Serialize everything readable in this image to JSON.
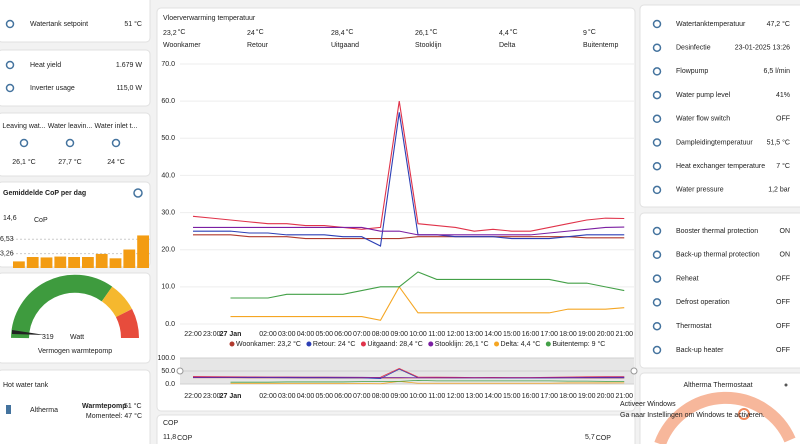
{
  "left": {
    "setpoint": {
      "label": "Watertank setpoint",
      "value": "51 °C"
    },
    "energy": [
      {
        "label": "Heat yield",
        "value": "1.679 W"
      },
      {
        "label": "Inverter usage",
        "value": "115,0 W"
      }
    ],
    "water": [
      {
        "label": "Leaving wat...",
        "value": "26,1 °C"
      },
      {
        "label": "Water leavin...",
        "value": "27,7 °C"
      },
      {
        "label": "Water inlet t...",
        "value": "24 °C"
      }
    ],
    "cop_day": {
      "title": "Gemiddelde CoP per dag",
      "value": "14,6",
      "unit": "CoP"
    },
    "power": {
      "value": "319",
      "unit": "Watt",
      "label": "Vermogen warmtepomp"
    },
    "hot_water": {
      "title": "Hot water tank",
      "name": "Altherma",
      "state_label": "Warmtepomp",
      "state": "51 °C",
      "current": "Momenteel: 47 °C"
    }
  },
  "chart_data": [
    {
      "type": "line",
      "title": "Vloerverwarming temperatuur",
      "stats": [
        {
          "value": "23,2",
          "unit": "°C",
          "name": "Woonkamer"
        },
        {
          "value": "24",
          "unit": "°C",
          "name": "Retour"
        },
        {
          "value": "28,4",
          "unit": "°C",
          "name": "Uitgaand"
        },
        {
          "value": "26,1",
          "unit": "°C",
          "name": "Stooklijn"
        },
        {
          "value": "4,4",
          "unit": "°C",
          "name": "Delta"
        },
        {
          "value": "9",
          "unit": "°C",
          "name": "Buitentemp"
        }
      ],
      "categories": [
        "22:00",
        "23:00",
        "27 Jan",
        null,
        "02:00",
        "03:00",
        "04:00",
        "05:00",
        "06:00",
        "07:00",
        "08:00",
        "09:00",
        "10:00",
        "11:00",
        "12:00",
        "13:00",
        "14:00",
        "15:00",
        "16:00",
        "17:00",
        "18:00",
        "19:00",
        "20:00",
        "21:00"
      ],
      "series": [
        {
          "name": "Woonkamer",
          "color": "#b03a2e",
          "values": [
            24,
            24,
            24,
            23.5,
            23.5,
            23.5,
            23,
            23,
            23,
            23,
            23,
            23,
            23.5,
            23.5,
            23.5,
            23.5,
            23.5,
            23.5,
            23.5,
            23.5,
            23.5,
            23.2,
            23.2,
            23.2
          ]
        },
        {
          "name": "Retour",
          "color": "#2c3fb5",
          "values": [
            25,
            25,
            25,
            24.5,
            24.5,
            24,
            24,
            24,
            23.5,
            23.5,
            21,
            57,
            24,
            24,
            23.5,
            23.5,
            23.5,
            23,
            23,
            23,
            23.5,
            24,
            24,
            24
          ]
        },
        {
          "name": "Uitgaand",
          "color": "#e0334a",
          "values": [
            29,
            28.5,
            28,
            27.5,
            27,
            27,
            26.5,
            26.5,
            26,
            25.5,
            26,
            60,
            27,
            26.5,
            26,
            25,
            25.5,
            25,
            25,
            26,
            27,
            28,
            28.5,
            28.4
          ]
        },
        {
          "name": "Stooklijn",
          "color": "#7b1fa2",
          "values": [
            26,
            26,
            26,
            26,
            26,
            26,
            26,
            26,
            26,
            26,
            25,
            25,
            24,
            24,
            24,
            24,
            24,
            24,
            24,
            24.5,
            25,
            25.5,
            26,
            26.1
          ]
        },
        {
          "name": "Delta",
          "color": "#f5a623",
          "values": [
            null,
            null,
            2,
            2,
            2,
            2,
            2,
            2,
            2,
            2,
            1,
            10,
            3,
            3,
            3,
            3,
            3,
            3,
            3,
            3,
            4,
            4,
            4,
            4.4
          ]
        },
        {
          "name": "Buitentemp",
          "color": "#43a047",
          "values": [
            null,
            null,
            7,
            7,
            7,
            8,
            8,
            8,
            8,
            9,
            10,
            10,
            14,
            12,
            12,
            12,
            12,
            12,
            12,
            12,
            11,
            11,
            10,
            9
          ]
        }
      ],
      "legend": [
        "Woonkamer: 23,2 °C",
        "Retour: 24 °C",
        "Uitgaand: 28,4 °C",
        "Stooklijn: 26,1 °C",
        "Delta: 4,4 °C",
        "Buitentemp: 9 °C"
      ],
      "ylim": [
        0,
        70
      ],
      "yticks": [
        {
          "value": 0,
          "label": "0.0"
        },
        {
          "value": 10,
          "label": "10.0"
        },
        {
          "value": 20,
          "label": "20.0"
        },
        {
          "value": 30,
          "label": "30.0"
        },
        {
          "value": 40,
          "label": "40.0"
        },
        {
          "value": 50,
          "label": "50.0"
        },
        {
          "value": 60,
          "label": "60.0"
        },
        {
          "value": 70,
          "label": "70.0"
        }
      ],
      "navigator_ylim": [
        0,
        100
      ],
      "navigator_yticks": [
        {
          "value": 100,
          "label": "100.0"
        },
        {
          "value": 50,
          "label": "50.0"
        },
        {
          "value": 0,
          "label": "0.0"
        }
      ],
      "grid": true
    },
    {
      "type": "bar",
      "categories": [
        null,
        null,
        null,
        null,
        null,
        null,
        null,
        null,
        null,
        null
      ],
      "values": [
        1.5,
        2.5,
        2.4,
        2.6,
        2.5,
        2.5,
        3.2,
        2.2,
        4.2,
        7.4
      ],
      "color": "#f39c12",
      "ylim": [
        0,
        7.5
      ],
      "yticks": [
        {
          "value": 3.26,
          "label": "3,26"
        },
        {
          "value": 6.53,
          "label": "6,53"
        }
      ]
    }
  ],
  "cop": {
    "title": "COP",
    "values": [
      {
        "value": "11,8",
        "unit": "COP"
      },
      {
        "value": "5,7",
        "unit": "COP"
      }
    ]
  },
  "right": {
    "sensors": [
      {
        "label": "Watertanktemperatuur",
        "value": "47,2 °C"
      },
      {
        "label": "Desinfectie",
        "value": "23-01-2025 13:26"
      },
      {
        "label": "Flowpump",
        "value": "6,5 l/min"
      },
      {
        "label": "Water pump level",
        "value": "41%"
      },
      {
        "label": "Water flow switch",
        "value": "OFF"
      },
      {
        "label": "Dampleidingtemperatuur",
        "value": "51,5 °C"
      },
      {
        "label": "Heat exchanger temperature",
        "value": "7 °C"
      },
      {
        "label": "Water pressure",
        "value": "1,2 bar"
      }
    ],
    "states": [
      {
        "label": "Booster thermal protection",
        "value": "ON"
      },
      {
        "label": "Back-up thermal protection",
        "value": "ON"
      },
      {
        "label": "Reheat",
        "value": "OFF"
      },
      {
        "label": "Defrost operation",
        "value": "OFF"
      },
      {
        "label": "Thermostat",
        "value": "OFF"
      },
      {
        "label": "Back-up heater",
        "value": "OFF"
      }
    ],
    "thermostat": {
      "title": "Altherma Thermostaat"
    }
  },
  "watermark": {
    "title": "Activeer Windows",
    "text": "Ga naar Instellingen om Windows te activeren."
  }
}
